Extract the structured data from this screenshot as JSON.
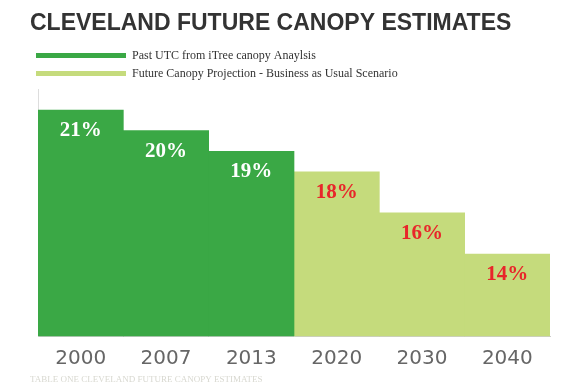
{
  "chart_data": {
    "type": "bar",
    "title": "CLEVELAND FUTURE CANOPY ESTIMATES",
    "subtitle": "TABLE ONE CLEVELAND FUTURE CANOPY ESTIMATES",
    "categories": [
      "2000",
      "2007",
      "2013",
      "2020",
      "2030",
      "2040"
    ],
    "series": [
      {
        "name": "Past UTC from iTree canopy Anaylsis",
        "color": "#3aa845",
        "values": [
          21,
          20,
          19,
          null,
          null,
          null
        ],
        "value_labels": [
          "21%",
          "20%",
          "19%",
          null,
          null,
          null
        ]
      },
      {
        "name": "Future Canopy Projection - Business as Usual Scenario",
        "color": "#c5db7c",
        "values": [
          null,
          null,
          null,
          18,
          16,
          14
        ],
        "value_labels": [
          null,
          null,
          null,
          "18%",
          "16%",
          "14%"
        ]
      }
    ],
    "ylim": [
      10,
      22
    ],
    "stacked": true,
    "data_labels": true,
    "grid": false,
    "legend": "top-left",
    "tick_labels": "x"
  }
}
